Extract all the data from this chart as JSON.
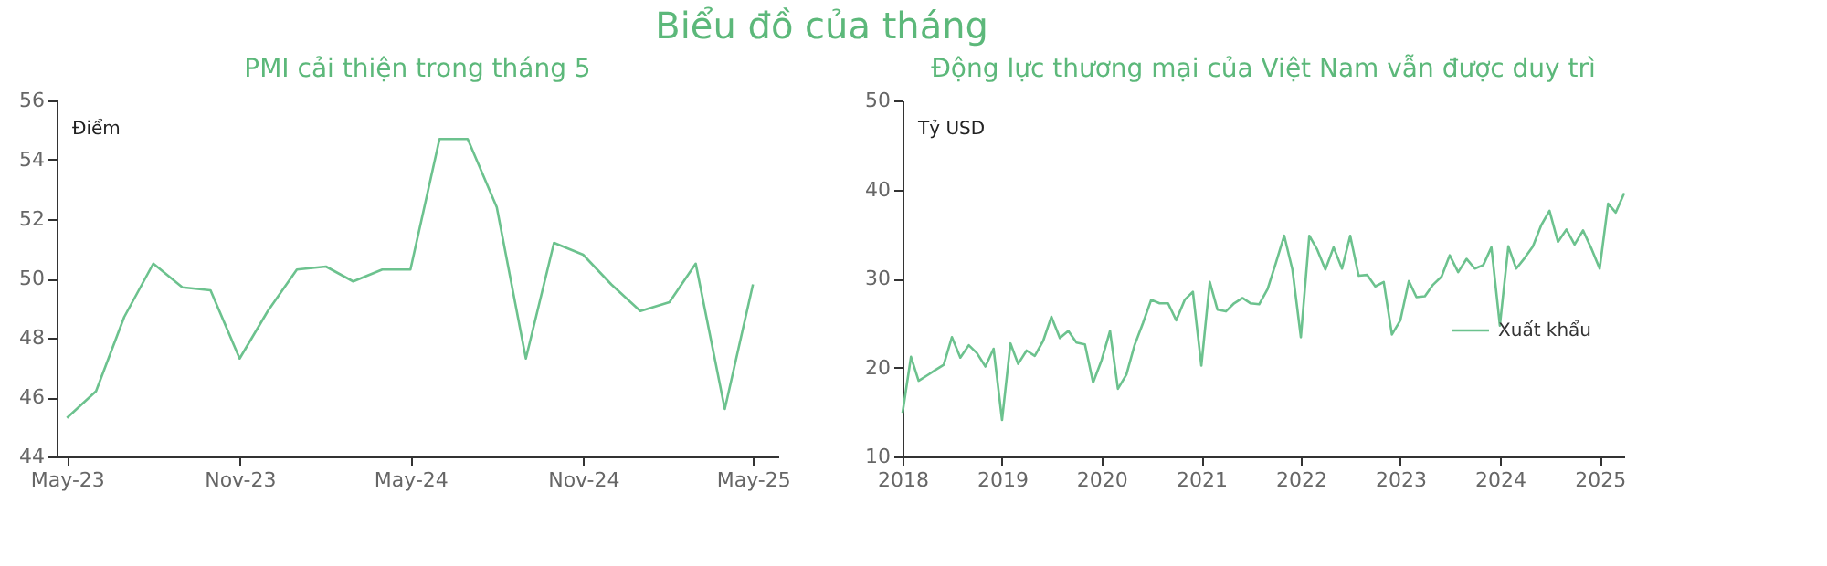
{
  "chart_data": [
    {
      "type": "line",
      "title": "PMI cải thiện trong tháng 5",
      "annotations": [
        "Biểu đồ của tháng"
      ],
      "ylabel": "Điểm",
      "x": [
        "2023-05",
        "2023-06",
        "2023-07",
        "2023-08",
        "2023-09",
        "2023-10",
        "2023-11",
        "2023-12",
        "2024-01",
        "2024-02",
        "2024-03",
        "2024-04",
        "2024-05",
        "2024-06",
        "2024-07",
        "2024-08",
        "2024-09",
        "2024-10",
        "2024-11",
        "2024-12",
        "2025-01",
        "2025-02",
        "2025-03",
        "2025-04",
        "2025-05"
      ],
      "series": [
        {
          "color": "#6cc28e",
          "values": [
            45.3,
            46.2,
            48.7,
            50.5,
            49.7,
            49.6,
            47.3,
            48.9,
            50.3,
            50.4,
            49.9,
            50.3,
            50.3,
            54.7,
            54.7,
            52.4,
            47.3,
            51.2,
            50.8,
            49.8,
            48.9,
            49.2,
            50.5,
            45.6,
            49.8
          ]
        }
      ],
      "xlim": [
        "2023-04-20",
        "2025-05-28"
      ],
      "xticks": [
        {
          "value": "2023-05",
          "label": "May-23"
        },
        {
          "value": "2023-11",
          "label": "Nov-23"
        },
        {
          "value": "2024-05",
          "label": "May-24"
        },
        {
          "value": "2024-11",
          "label": "Nov-24"
        },
        {
          "value": "2025-05",
          "label": "May-25"
        }
      ],
      "ylim": [
        44,
        56
      ],
      "yticks": [
        44,
        46,
        48,
        50,
        52,
        54,
        56
      ],
      "grid": false,
      "legend": false,
      "marker": "none",
      "line_style": "solid"
    },
    {
      "type": "line",
      "title": "Động lực thương mại của Việt Nam vẫn được duy trì",
      "ylabel": "Tỷ USD",
      "x": [
        "2018-01",
        "2018-02",
        "2018-03",
        "2018-04",
        "2018-05",
        "2018-06",
        "2018-07",
        "2018-08",
        "2018-09",
        "2018-10",
        "2018-11",
        "2018-12",
        "2019-01",
        "2019-02",
        "2019-03",
        "2019-04",
        "2019-05",
        "2019-06",
        "2019-07",
        "2019-08",
        "2019-09",
        "2019-10",
        "2019-11",
        "2019-12",
        "2020-01",
        "2020-02",
        "2020-03",
        "2020-04",
        "2020-05",
        "2020-06",
        "2020-07",
        "2020-08",
        "2020-09",
        "2020-10",
        "2020-11",
        "2020-12",
        "2021-01",
        "2021-02",
        "2021-03",
        "2021-04",
        "2021-05",
        "2021-06",
        "2021-07",
        "2021-08",
        "2021-09",
        "2021-10",
        "2021-11",
        "2021-12",
        "2022-01",
        "2022-02",
        "2022-03",
        "2022-04",
        "2022-05",
        "2022-06",
        "2022-07",
        "2022-08",
        "2022-09",
        "2022-10",
        "2022-11",
        "2022-12",
        "2023-01",
        "2023-02",
        "2023-03",
        "2023-04",
        "2023-05",
        "2023-06",
        "2023-07",
        "2023-08",
        "2023-09",
        "2023-10",
        "2023-11",
        "2023-12",
        "2024-01",
        "2024-02",
        "2024-03",
        "2024-04",
        "2024-05",
        "2024-06",
        "2024-07",
        "2024-08",
        "2024-09",
        "2024-10",
        "2024-11",
        "2024-12",
        "2025-01",
        "2025-02",
        "2025-03",
        "2025-04"
      ],
      "series": [
        {
          "name": "Xuất khẩu",
          "color": "#6cc28e",
          "values": [
            14.9,
            21.2,
            18.5,
            19.1,
            19.7,
            20.3,
            23.4,
            21.1,
            22.5,
            21.6,
            20.1,
            22.1,
            14.1,
            22.7,
            20.4,
            21.9,
            21.3,
            23.0,
            25.7,
            23.3,
            24.1,
            22.8,
            22.6,
            18.3,
            20.8,
            24.1,
            17.6,
            19.2,
            22.5,
            25.0,
            27.6,
            27.2,
            27.2,
            25.3,
            27.6,
            28.5,
            20.2,
            29.6,
            26.5,
            26.3,
            27.2,
            27.8,
            27.2,
            27.1,
            28.8,
            31.7,
            34.8,
            31.0,
            23.4,
            34.8,
            33.3,
            31.0,
            33.5,
            31.1,
            34.8,
            30.3,
            30.4,
            29.1,
            29.6,
            23.7,
            25.3,
            29.7,
            27.9,
            28.0,
            29.3,
            30.2,
            32.6,
            30.7,
            32.2,
            31.1,
            31.5,
            33.5,
            24.7,
            33.6,
            31.1,
            32.3,
            33.6,
            36.0,
            37.6,
            34.1,
            35.5,
            33.8,
            35.4,
            33.4,
            31.1,
            38.4,
            37.4,
            39.6
          ]
        }
      ],
      "xlim": [
        "2018-01",
        "2025-04"
      ],
      "xticks": [
        "2018",
        "2019",
        "2020",
        "2021",
        "2022",
        "2023",
        "2024",
        "2025"
      ],
      "ylim": [
        10,
        50
      ],
      "yticks": [
        10,
        20,
        30,
        40,
        50
      ],
      "grid": false,
      "legend": "right",
      "marker": "none",
      "line_style": "solid"
    }
  ]
}
